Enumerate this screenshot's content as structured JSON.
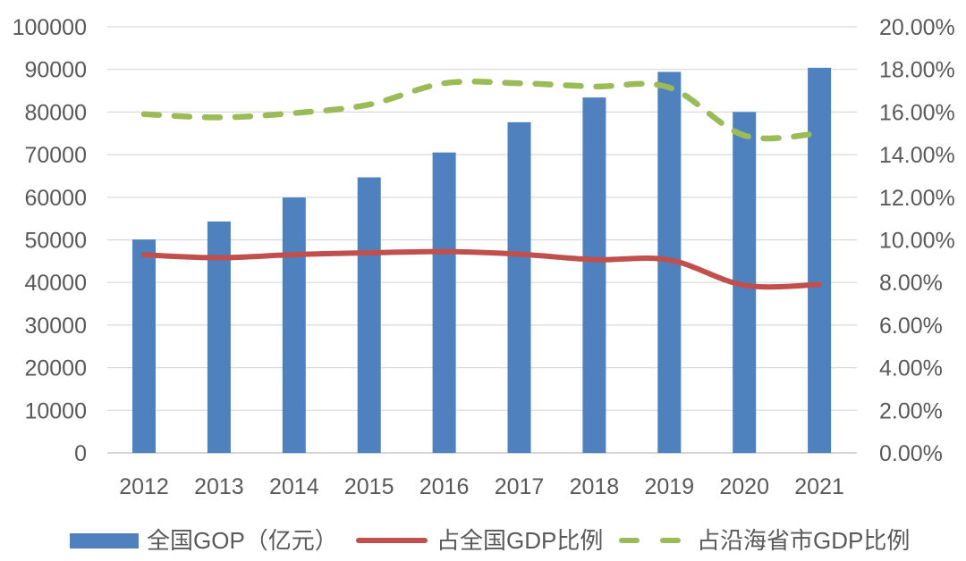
{
  "chart_data": {
    "type": "combo",
    "title": "",
    "categories": [
      "2012",
      "2013",
      "2014",
      "2015",
      "2016",
      "2017",
      "2018",
      "2019",
      "2020",
      "2021"
    ],
    "series": [
      {
        "name": "全国GOP（亿元）",
        "type": "bar",
        "axis": "left",
        "color": "#4E81BD",
        "values": [
          50087,
          54313,
          59936,
          64669,
          70507,
          77611,
          83415,
          89415,
          80010,
          90385
        ]
      },
      {
        "name": "占全国GDP比例",
        "type": "line",
        "line_style": "solid",
        "axis": "right",
        "color": "#C0504D",
        "values_pct": [
          9.3,
          9.16,
          9.31,
          9.39,
          9.45,
          9.33,
          9.07,
          9.06,
          7.87,
          7.9
        ]
      },
      {
        "name": "占沿海省市GDP比例",
        "type": "line",
        "line_style": "dashed",
        "axis": "right",
        "color": "#9BBB59",
        "values_pct": [
          15.9,
          15.75,
          15.95,
          16.35,
          17.35,
          17.35,
          17.2,
          17.15,
          14.9,
          15.0
        ]
      }
    ],
    "left_axis": {
      "min": 0,
      "max": 100000,
      "step": 10000,
      "tick_labels": [
        "0",
        "10000",
        "20000",
        "30000",
        "40000",
        "50000",
        "60000",
        "70000",
        "80000",
        "90000",
        "100000"
      ]
    },
    "right_axis": {
      "min": 0,
      "max": 20,
      "step": 2,
      "tick_labels": [
        "0.00%",
        "2.00%",
        "4.00%",
        "6.00%",
        "8.00%",
        "10.00%",
        "12.00%",
        "14.00%",
        "16.00%",
        "18.00%",
        "20.00%"
      ]
    },
    "grid": true,
    "legend_position": "bottom",
    "background_color": "#FFFFFF",
    "text_color": "#595959",
    "gridline_color": "#D9D9D9",
    "zero_axis_color": "#C9C9C9"
  }
}
